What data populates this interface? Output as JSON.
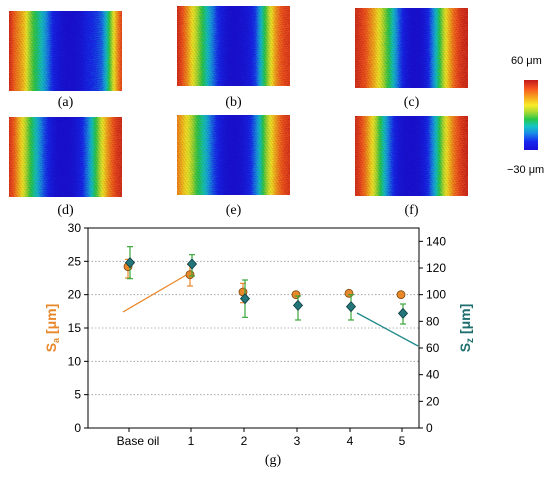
{
  "panels": [
    {
      "caption": "(a)",
      "stripes": [
        0.95,
        0.85,
        0.78,
        0.7,
        0.55,
        0.45,
        0.38,
        0.3,
        0.2,
        0.1,
        0.05,
        0.02,
        0.0,
        0.0,
        0.02,
        0.05,
        0.1,
        0.12,
        0.15,
        0.2,
        0.35,
        0.55,
        0.75,
        0.9
      ]
    },
    {
      "caption": "(b)",
      "stripes": [
        0.95,
        0.88,
        0.78,
        0.65,
        0.55,
        0.45,
        0.35,
        0.25,
        0.15,
        0.08,
        0.03,
        0.0,
        0.0,
        0.02,
        0.04,
        0.08,
        0.15,
        0.3,
        0.45,
        0.6,
        0.75,
        0.85,
        0.9,
        0.92
      ]
    },
    {
      "caption": "(c)",
      "stripes": [
        0.95,
        0.92,
        0.88,
        0.8,
        0.72,
        0.62,
        0.52,
        0.42,
        0.3,
        0.18,
        0.08,
        0.02,
        0.0,
        0.0,
        0.04,
        0.12,
        0.25,
        0.4,
        0.55,
        0.7,
        0.82,
        0.9,
        0.94,
        0.96
      ]
    },
    {
      "caption": "(d)",
      "stripes": [
        0.93,
        0.85,
        0.72,
        0.6,
        0.48,
        0.38,
        0.28,
        0.18,
        0.1,
        0.04,
        0.0,
        0.0,
        0.0,
        0.02,
        0.06,
        0.12,
        0.22,
        0.35,
        0.48,
        0.62,
        0.75,
        0.85,
        0.92,
        0.95
      ]
    },
    {
      "caption": "(e)",
      "stripes": [
        0.8,
        0.72,
        0.64,
        0.55,
        0.45,
        0.38,
        0.3,
        0.2,
        0.12,
        0.06,
        0.02,
        0.0,
        0.0,
        0.02,
        0.06,
        0.12,
        0.22,
        0.35,
        0.5,
        0.62,
        0.74,
        0.84,
        0.9,
        0.93
      ]
    },
    {
      "caption": "(f)",
      "stripes": [
        0.95,
        0.9,
        0.82,
        0.7,
        0.58,
        0.45,
        0.32,
        0.2,
        0.1,
        0.04,
        0.01,
        0.0,
        0.0,
        0.02,
        0.06,
        0.14,
        0.26,
        0.4,
        0.55,
        0.68,
        0.8,
        0.88,
        0.93,
        0.96
      ]
    }
  ],
  "colorbar": {
    "max_label": "60 μm",
    "min_label": "−30 μm"
  },
  "chart_data": {
    "type": "scatter",
    "categories": [
      "Base oil",
      "1",
      "2",
      "3",
      "4",
      "5"
    ],
    "left_axis": {
      "label_main": "S",
      "label_sub": "a",
      "label_unit": " [μm]",
      "ylim": [
        0,
        30
      ],
      "ticks": [
        "0",
        "5",
        "10",
        "15",
        "20",
        "25",
        "30"
      ],
      "color": "#e8882a"
    },
    "right_axis": {
      "label_main": "S",
      "label_sub": "z",
      "label_unit": " [μm]",
      "ylim": [
        0,
        150
      ],
      "ticks": [
        "0",
        "20",
        "40",
        "60",
        "80",
        "100",
        "120",
        "140"
      ],
      "color": "#1f6f6f"
    },
    "series": [
      {
        "axis": "left",
        "marker": "circle",
        "color": "#e8882a",
        "values": [
          24.2,
          23.0,
          20.4,
          20.0,
          20.2,
          20.0
        ],
        "err_low": [
          22.5,
          21.3,
          18.8,
          20.0,
          20.0,
          20.0
        ],
        "err_high": [
          25.3,
          24.5,
          21.7,
          20.0,
          20.3,
          20.0
        ]
      },
      {
        "axis": "right",
        "marker": "diamond",
        "color": "#24757a",
        "values": [
          124,
          123,
          97,
          92,
          91,
          86
        ],
        "err_low": [
          112,
          114,
          83,
          81,
          81,
          78
        ],
        "err_high": [
          136,
          130,
          111,
          99,
          100,
          93
        ]
      }
    ],
    "grid": "dotted horizontal",
    "caption": "(g)"
  }
}
